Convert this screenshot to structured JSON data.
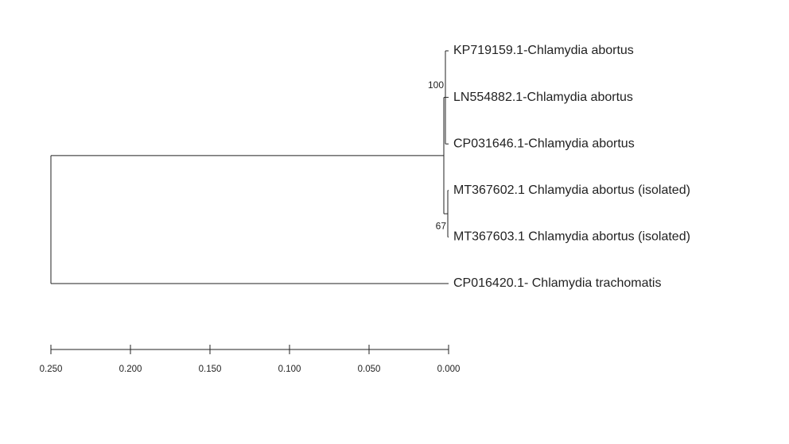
{
  "tree": {
    "height": 0.25,
    "children": [
      {
        "height": 0.003,
        "children": [
          {
            "height": 0.002,
            "support": 100,
            "children": [
              {
                "label": "KP719159.1-Chlamydia abortus"
              },
              {
                "label": "LN554882.1-Chlamydia abortus"
              },
              {
                "label": "CP031646.1-Chlamydia abortus"
              }
            ]
          },
          {
            "height": 0.0005,
            "support": 67,
            "children": [
              {
                "label": "MT367602.1 Chlamydia abortus (isolated)"
              },
              {
                "label": "MT367603.1 Chlamydia abortus (isolated)"
              }
            ]
          }
        ]
      },
      {
        "label": "CP016420.1- Chlamydia trachomatis"
      }
    ]
  },
  "scale": {
    "xlim": [
      0.25,
      0
    ],
    "xticks": [
      {
        "value": 0.25,
        "label": "0.250"
      },
      {
        "value": 0.2,
        "label": "0.200"
      },
      {
        "value": 0.15,
        "label": "0.150"
      },
      {
        "value": 0.1,
        "label": "0.100"
      },
      {
        "value": 0.05,
        "label": "0.050"
      },
      {
        "value": 0,
        "label": "0.000"
      }
    ]
  }
}
